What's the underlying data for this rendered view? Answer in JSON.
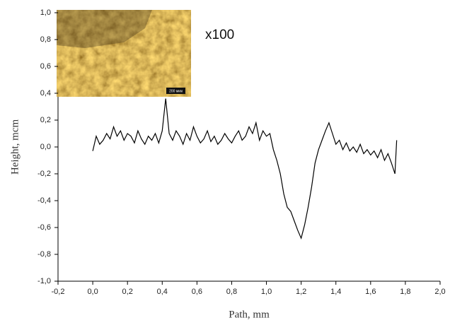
{
  "chart_data": {
    "type": "line",
    "color": "#000000",
    "xlabel": "Path, mm",
    "ylabel": "Height, mcm",
    "annotation": "x100",
    "inset_scale_label": "200 мкм",
    "xlim": [
      -0.2,
      2.0
    ],
    "xticks": [
      {
        "value": -0.2,
        "label": "-0,2"
      },
      {
        "value": 0.0,
        "label": "0,0"
      },
      {
        "value": 0.2,
        "label": "0,2"
      },
      {
        "value": 0.4,
        "label": "0,4"
      },
      {
        "value": 0.6,
        "label": "0,6"
      },
      {
        "value": 0.8,
        "label": "0,8"
      },
      {
        "value": 1.0,
        "label": "1,0"
      },
      {
        "value": 1.2,
        "label": "1,2"
      },
      {
        "value": 1.4,
        "label": "1,4"
      },
      {
        "value": 1.6,
        "label": "1,6"
      },
      {
        "value": 1.8,
        "label": "1,8"
      },
      {
        "value": 2.0,
        "label": "2,0"
      }
    ],
    "ylim": [
      -1.0,
      1.0
    ],
    "yticks": [
      {
        "value": -1.0,
        "label": "-1,0"
      },
      {
        "value": -0.8,
        "label": "-0,8"
      },
      {
        "value": -0.6,
        "label": "-0,6"
      },
      {
        "value": -0.4,
        "label": "-0,4"
      },
      {
        "value": -0.2,
        "label": "-0,2"
      },
      {
        "value": 0.0,
        "label": "0,0"
      },
      {
        "value": 0.2,
        "label": "0,2"
      },
      {
        "value": 0.4,
        "label": "0,4"
      },
      {
        "value": 0.6,
        "label": "0,6"
      },
      {
        "value": 0.8,
        "label": "0,8"
      },
      {
        "value": 1.0,
        "label": "1,0"
      }
    ],
    "x": [
      0.0,
      0.02,
      0.04,
      0.06,
      0.08,
      0.1,
      0.12,
      0.14,
      0.16,
      0.18,
      0.2,
      0.22,
      0.24,
      0.26,
      0.28,
      0.3,
      0.32,
      0.34,
      0.36,
      0.38,
      0.4,
      0.42,
      0.44,
      0.46,
      0.48,
      0.5,
      0.52,
      0.54,
      0.56,
      0.58,
      0.6,
      0.62,
      0.64,
      0.66,
      0.68,
      0.7,
      0.72,
      0.74,
      0.76,
      0.78,
      0.8,
      0.82,
      0.84,
      0.86,
      0.88,
      0.9,
      0.92,
      0.94,
      0.96,
      0.98,
      1.0,
      1.02,
      1.04,
      1.06,
      1.08,
      1.1,
      1.12,
      1.14,
      1.16,
      1.18,
      1.2,
      1.22,
      1.24,
      1.26,
      1.28,
      1.3,
      1.32,
      1.34,
      1.36,
      1.38,
      1.4,
      1.42,
      1.44,
      1.46,
      1.48,
      1.5,
      1.52,
      1.54,
      1.56,
      1.58,
      1.6,
      1.62,
      1.64,
      1.66,
      1.68,
      1.7,
      1.72,
      1.74,
      1.75
    ],
    "values": [
      -0.03,
      0.08,
      0.02,
      0.05,
      0.1,
      0.06,
      0.15,
      0.08,
      0.12,
      0.05,
      0.1,
      0.08,
      0.03,
      0.12,
      0.06,
      0.02,
      0.08,
      0.05,
      0.1,
      0.03,
      0.12,
      0.36,
      0.1,
      0.05,
      0.12,
      0.08,
      0.02,
      0.1,
      0.05,
      0.15,
      0.08,
      0.03,
      0.06,
      0.12,
      0.04,
      0.08,
      0.02,
      0.05,
      0.1,
      0.06,
      0.03,
      0.08,
      0.12,
      0.05,
      0.08,
      0.15,
      0.1,
      0.18,
      0.05,
      0.12,
      0.08,
      0.1,
      -0.02,
      -0.1,
      -0.2,
      -0.35,
      -0.45,
      -0.48,
      -0.55,
      -0.62,
      -0.68,
      -0.58,
      -0.45,
      -0.3,
      -0.12,
      -0.02,
      0.05,
      0.12,
      0.18,
      0.1,
      0.02,
      0.05,
      -0.02,
      0.03,
      -0.03,
      0.0,
      -0.04,
      0.02,
      -0.05,
      -0.02,
      -0.06,
      -0.03,
      -0.08,
      -0.02,
      -0.1,
      -0.05,
      -0.12,
      -0.2,
      0.05
    ]
  }
}
